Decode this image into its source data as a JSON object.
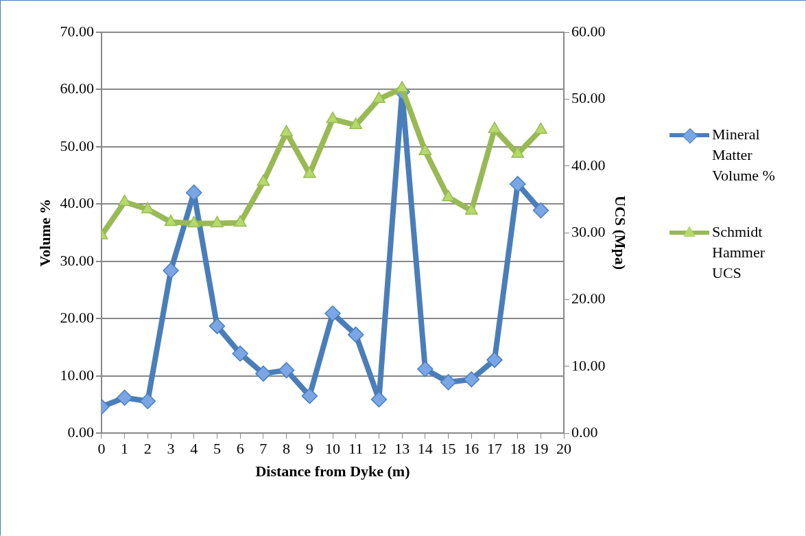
{
  "chart_data": {
    "type": "line",
    "xlabel": "Distance from Dyke (m)",
    "ylabel": "Volume %",
    "y2label": "UCS (Mpa)",
    "x": [
      0,
      1,
      2,
      3,
      4,
      5,
      6,
      7,
      8,
      9,
      10,
      11,
      12,
      13,
      14,
      15,
      16,
      17,
      18,
      19
    ],
    "xlim": [
      0,
      20
    ],
    "xticks": [
      0,
      1,
      2,
      3,
      4,
      5,
      6,
      7,
      8,
      9,
      10,
      11,
      12,
      13,
      14,
      15,
      16,
      17,
      18,
      19,
      20
    ],
    "ylim": [
      0,
      70
    ],
    "yticks": [
      {
        "value": 0,
        "label": "0.00"
      },
      {
        "value": 10,
        "label": "10.00"
      },
      {
        "value": 20,
        "label": "20.00"
      },
      {
        "value": 30,
        "label": "30.00"
      },
      {
        "value": 40,
        "label": "40.00"
      },
      {
        "value": 50,
        "label": "50.00"
      },
      {
        "value": 60,
        "label": "60.00"
      },
      {
        "value": 70,
        "label": "70.00"
      }
    ],
    "y2lim": [
      0,
      60
    ],
    "y2ticks": [
      {
        "value": 0,
        "label": "0.00"
      },
      {
        "value": 10,
        "label": "10.00"
      },
      {
        "value": 20,
        "label": "20.00"
      },
      {
        "value": 30,
        "label": "30.00"
      },
      {
        "value": 40,
        "label": "40.00"
      },
      {
        "value": 50,
        "label": "50.00"
      },
      {
        "value": 60,
        "label": "60.00"
      }
    ],
    "grid": "y",
    "legend": "right",
    "line_style": "solid",
    "series": [
      {
        "name": "Mineral Matter Volume %",
        "color": "#4a7ebb",
        "marker": "diamond",
        "values": [
          4.6,
          6.2,
          5.6,
          28.4,
          42.0,
          18.7,
          13.9,
          10.4,
          11.0,
          6.5,
          20.9,
          17.2,
          5.9,
          59.6,
          11.2,
          8.9,
          9.4,
          12.8,
          43.5,
          38.9
        ]
      },
      {
        "name": "Schmidt Hammer UCS",
        "color": "#98b954",
        "marker": "triangle",
        "axis": "y2",
        "values": [
          29.6,
          34.6,
          33.5,
          31.6,
          31.4,
          31.4,
          31.5,
          37.6,
          45.0,
          38.8,
          47.0,
          46.1,
          50.0,
          51.6,
          42.2,
          35.3,
          33.3,
          45.5,
          41.8,
          45.4
        ]
      }
    ]
  }
}
